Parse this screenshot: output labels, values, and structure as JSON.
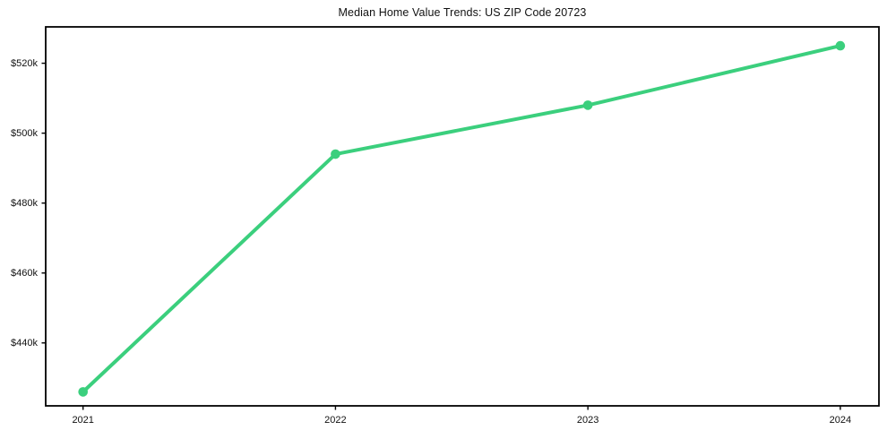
{
  "chart_data": {
    "type": "line",
    "title": "Median Home Value Trends: US ZIP Code 20723",
    "x": [
      2021,
      2022,
      2023,
      2024
    ],
    "x_ticks": [
      {
        "value": 2021,
        "label": "2021"
      },
      {
        "value": 2022,
        "label": "2022"
      },
      {
        "value": 2023,
        "label": "2023"
      },
      {
        "value": 2024,
        "label": "2024"
      }
    ],
    "y_ticks": [
      {
        "value": 440000,
        "label": "$440k"
      },
      {
        "value": 460000,
        "label": "$460k"
      },
      {
        "value": 480000,
        "label": "$480k"
      },
      {
        "value": 500000,
        "label": "$500k"
      },
      {
        "value": 520000,
        "label": "$520k"
      }
    ],
    "series": [
      {
        "name": "Median home value",
        "values": [
          426000,
          494000,
          508000,
          525000
        ]
      }
    ],
    "xlim": [
      2020.852,
      2024.153
    ],
    "ylim": [
      422000,
      530400
    ],
    "grid": false,
    "legend": false,
    "line_color": "#3bcf7d",
    "marker_color": "#3bcf7d",
    "frame_color": "#000000",
    "text_color": "#111111"
  }
}
